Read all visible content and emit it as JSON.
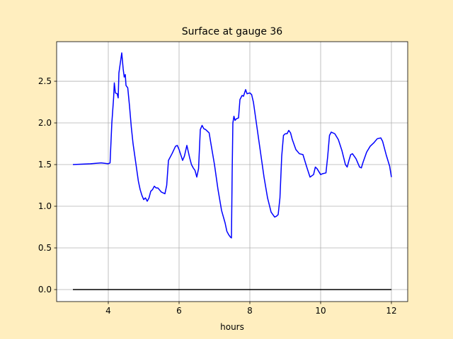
{
  "chart_data": {
    "type": "line",
    "title": "Surface at gauge 36",
    "xlabel": "hours",
    "xlim": [
      2.54,
      12.46
    ],
    "ylim": [
      -0.144,
      2.975
    ],
    "xticks": [
      4,
      6,
      8,
      10,
      12
    ],
    "yticks": [
      {
        "value": 0,
        "label": "0.0"
      },
      0.5,
      {
        "value": 1,
        "label": "1.0"
      },
      1.5,
      {
        "value": 2,
        "label": "2.0"
      },
      2.5
    ],
    "grid": true,
    "series": [
      {
        "color": "#0000ff",
        "x": [
          3.0,
          3.5,
          3.8,
          4.0,
          4.05,
          4.1,
          4.15,
          4.17,
          4.2,
          4.25,
          4.28,
          4.3,
          4.35,
          4.38,
          4.42,
          4.45,
          4.48,
          4.5,
          4.55,
          4.6,
          4.65,
          4.7,
          4.75,
          4.8,
          4.85,
          4.9,
          4.95,
          5.0,
          5.05,
          5.1,
          5.15,
          5.2,
          5.25,
          5.3,
          5.35,
          5.4,
          5.5,
          5.6,
          5.65,
          5.7,
          5.8,
          5.9,
          5.95,
          6.0,
          6.1,
          6.15,
          6.22,
          6.3,
          6.35,
          6.4,
          6.45,
          6.5,
          6.55,
          6.6,
          6.65,
          6.7,
          6.75,
          6.8,
          6.85,
          6.9,
          7.0,
          7.1,
          7.2,
          7.3,
          7.35,
          7.4,
          7.45,
          7.48,
          7.5,
          7.52,
          7.55,
          7.58,
          7.62,
          7.68,
          7.72,
          7.78,
          7.82,
          7.88,
          7.92,
          8.0,
          8.05,
          8.1,
          8.2,
          8.3,
          8.4,
          8.5,
          8.6,
          8.7,
          8.75,
          8.8,
          8.85,
          8.9,
          8.95,
          9.0,
          9.05,
          9.1,
          9.15,
          9.2,
          9.3,
          9.4,
          9.5,
          9.6,
          9.7,
          9.8,
          9.85,
          9.9,
          10.0,
          10.05,
          10.15,
          10.2,
          10.25,
          10.3,
          10.4,
          10.5,
          10.6,
          10.7,
          10.75,
          10.8,
          10.85,
          10.9,
          11.0,
          11.1,
          11.15,
          11.2,
          11.3,
          11.4,
          11.5,
          11.6,
          11.7,
          11.75,
          11.85,
          11.95,
          12.0
        ],
        "values": [
          1.5,
          1.51,
          1.52,
          1.51,
          1.52,
          2.0,
          2.3,
          2.48,
          2.36,
          2.35,
          2.3,
          2.6,
          2.75,
          2.84,
          2.65,
          2.55,
          2.58,
          2.45,
          2.42,
          2.2,
          1.95,
          1.75,
          1.6,
          1.45,
          1.3,
          1.2,
          1.13,
          1.08,
          1.1,
          1.06,
          1.1,
          1.18,
          1.2,
          1.24,
          1.22,
          1.22,
          1.17,
          1.15,
          1.25,
          1.55,
          1.63,
          1.72,
          1.73,
          1.68,
          1.55,
          1.6,
          1.73,
          1.58,
          1.5,
          1.46,
          1.43,
          1.35,
          1.45,
          1.92,
          1.97,
          1.93,
          1.92,
          1.9,
          1.88,
          1.75,
          1.5,
          1.2,
          0.95,
          0.8,
          0.7,
          0.66,
          0.63,
          0.62,
          1.4,
          2.0,
          2.08,
          2.03,
          2.05,
          2.06,
          2.28,
          2.33,
          2.32,
          2.4,
          2.35,
          2.36,
          2.34,
          2.25,
          1.95,
          1.65,
          1.35,
          1.1,
          0.93,
          0.87,
          0.88,
          0.9,
          1.1,
          1.6,
          1.85,
          1.87,
          1.87,
          1.91,
          1.88,
          1.8,
          1.68,
          1.63,
          1.62,
          1.48,
          1.35,
          1.38,
          1.47,
          1.45,
          1.38,
          1.39,
          1.4,
          1.6,
          1.85,
          1.89,
          1.87,
          1.8,
          1.67,
          1.5,
          1.47,
          1.55,
          1.62,
          1.63,
          1.57,
          1.47,
          1.46,
          1.53,
          1.65,
          1.72,
          1.76,
          1.81,
          1.82,
          1.78,
          1.62,
          1.48,
          1.35
        ]
      },
      {
        "color": "#000000",
        "x": [
          3,
          12
        ],
        "values": [
          0,
          0
        ]
      }
    ]
  }
}
